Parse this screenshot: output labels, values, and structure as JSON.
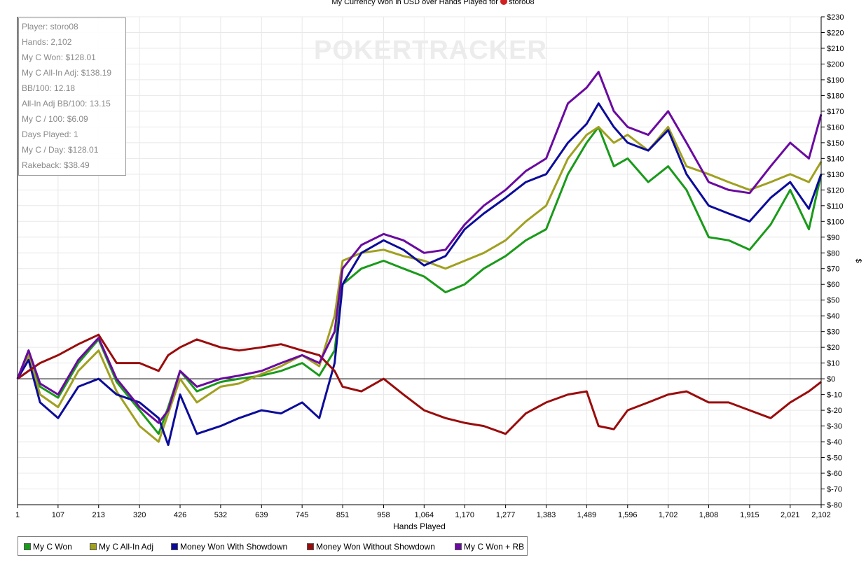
{
  "watermark": "POKERTRACKER",
  "title": {
    "before": "My Currency Won in USD over Hands Played for",
    "player": "storo08"
  },
  "stats": [
    "Player: storo08",
    "Hands: 2,102",
    "My C Won: $128.01",
    "My C All-In Adj: $138.19",
    "BB/100: 12.18",
    "All-In Adj BB/100: 13.15",
    "My C / 100: $6.09",
    "Days Played: 1",
    "My C / Day: $128.01",
    "Rakeback: $38.49"
  ],
  "chart_data": {
    "type": "line",
    "title": "My Currency Won in USD over Hands Played for storo08",
    "xlabel": "Hands Played",
    "ylabel": "$",
    "xlim": [
      1,
      2102
    ],
    "ylim": [
      -80,
      230
    ],
    "x_ticks": [
      1,
      107,
      213,
      320,
      426,
      532,
      639,
      745,
      851,
      958,
      1064,
      1170,
      1277,
      1383,
      1489,
      1596,
      1702,
      1808,
      1915,
      2021,
      2102
    ],
    "x_tick_labels": [
      "1",
      "107",
      "213",
      "320",
      "426",
      "532",
      "639",
      "745",
      "851",
      "958",
      "1,064",
      "1,170",
      "1,277",
      "1,383",
      "1,489",
      "1,596",
      "1,702",
      "1,808",
      "1,915",
      "2,021",
      "2,102"
    ],
    "y_ticks": [
      -80,
      -70,
      -60,
      -50,
      -40,
      -30,
      -20,
      -10,
      0,
      10,
      20,
      30,
      40,
      50,
      60,
      70,
      80,
      90,
      100,
      110,
      120,
      130,
      140,
      150,
      160,
      170,
      180,
      190,
      200,
      210,
      220,
      230
    ],
    "y_tick_labels": [
      "$-80",
      "$-70",
      "$-60",
      "$-50",
      "$-40",
      "$-30",
      "$-20",
      "$-10",
      "$0",
      "$10",
      "$20",
      "$30",
      "$40",
      "$50",
      "$60",
      "$70",
      "$80",
      "$90",
      "$100",
      "$110",
      "$120",
      "$130",
      "$140",
      "$150",
      "$160",
      "$170",
      "$180",
      "$190",
      "$200",
      "$210",
      "$220",
      "$230"
    ],
    "grid": true,
    "legend_position": "bottom",
    "x": [
      1,
      30,
      60,
      107,
      160,
      213,
      260,
      320,
      370,
      395,
      426,
      470,
      532,
      580,
      639,
      690,
      745,
      790,
      830,
      851,
      900,
      958,
      1010,
      1064,
      1120,
      1170,
      1220,
      1277,
      1330,
      1383,
      1440,
      1489,
      1520,
      1560,
      1596,
      1650,
      1702,
      1750,
      1808,
      1860,
      1915,
      1970,
      2021,
      2070,
      2102
    ],
    "series": [
      {
        "name": "My C Won",
        "color": "#1a9a1a",
        "values": [
          0,
          18,
          -5,
          -12,
          10,
          25,
          -2,
          -20,
          -35,
          -18,
          5,
          -8,
          -2,
          0,
          2,
          5,
          10,
          2,
          18,
          60,
          70,
          75,
          70,
          65,
          55,
          60,
          70,
          78,
          88,
          95,
          130,
          150,
          160,
          135,
          140,
          125,
          135,
          120,
          90,
          88,
          82,
          98,
          120,
          95,
          130
        ]
      },
      {
        "name": "My C All-In Adj",
        "color": "#a0a020",
        "values": [
          0,
          15,
          -10,
          -18,
          5,
          18,
          -8,
          -30,
          -40,
          -22,
          0,
          -15,
          -5,
          -3,
          3,
          8,
          15,
          8,
          40,
          75,
          80,
          82,
          78,
          75,
          70,
          75,
          80,
          88,
          100,
          110,
          140,
          155,
          160,
          150,
          155,
          145,
          160,
          135,
          130,
          125,
          120,
          125,
          130,
          125,
          138
        ]
      },
      {
        "name": "Money Won With Showdown",
        "color": "#0c0c9a",
        "values": [
          0,
          12,
          -15,
          -25,
          -5,
          0,
          -10,
          -15,
          -25,
          -42,
          -10,
          -35,
          -30,
          -25,
          -20,
          -22,
          -15,
          -25,
          10,
          60,
          80,
          88,
          82,
          72,
          78,
          95,
          105,
          115,
          125,
          130,
          150,
          162,
          175,
          160,
          150,
          145,
          158,
          130,
          110,
          105,
          100,
          115,
          125,
          108,
          130
        ]
      },
      {
        "name": "Money Won Without Showdown",
        "color": "#9a0c0c",
        "values": [
          0,
          5,
          10,
          15,
          22,
          28,
          10,
          10,
          5,
          15,
          20,
          25,
          20,
          18,
          20,
          22,
          18,
          15,
          5,
          -5,
          -8,
          0,
          -10,
          -20,
          -25,
          -28,
          -30,
          -35,
          -22,
          -15,
          -10,
          -8,
          -30,
          -32,
          -20,
          -15,
          -10,
          -8,
          -15,
          -15,
          -20,
          -25,
          -15,
          -8,
          -2
        ]
      },
      {
        "name": "My C Won + RB",
        "color": "#6a0aa0",
        "values": [
          0,
          18,
          -3,
          -10,
          12,
          26,
          0,
          -18,
          -28,
          -20,
          5,
          -5,
          0,
          2,
          5,
          10,
          15,
          10,
          30,
          70,
          85,
          92,
          88,
          80,
          82,
          98,
          110,
          120,
          132,
          140,
          175,
          185,
          195,
          170,
          160,
          155,
          170,
          150,
          125,
          120,
          118,
          135,
          150,
          140,
          168
        ]
      }
    ]
  }
}
